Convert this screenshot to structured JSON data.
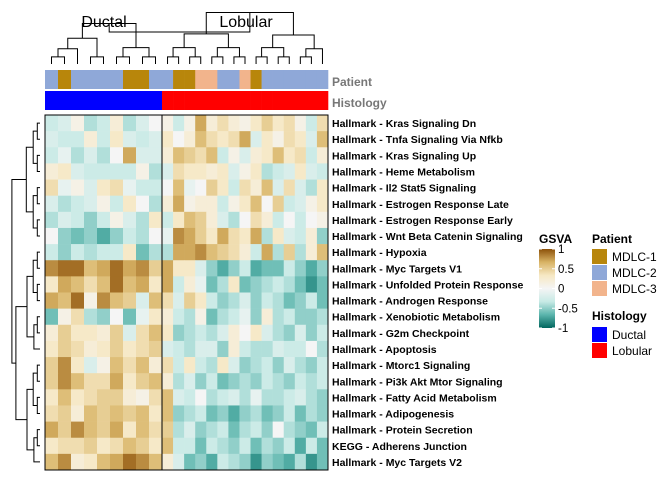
{
  "chart_data": {
    "type": "heatmap",
    "column_groups": [
      "Ductal",
      "Lobular"
    ],
    "annotation_labels": [
      "Patient",
      "Histology"
    ],
    "patient_colors": {
      "MDLC-1": "#B8860B",
      "MDLC-2": "#8FA8D8",
      "MDLC-3": "#F2B48C"
    },
    "histology_colors": {
      "Ductal": "#0000FF",
      "Lobular": "#FF0000"
    },
    "columns": [
      {
        "group": "Ductal",
        "patient": "MDLC-2"
      },
      {
        "group": "Ductal",
        "patient": "MDLC-1"
      },
      {
        "group": "Ductal",
        "patient": "MDLC-2"
      },
      {
        "group": "Ductal",
        "patient": "MDLC-2"
      },
      {
        "group": "Ductal",
        "patient": "MDLC-2"
      },
      {
        "group": "Ductal",
        "patient": "MDLC-2"
      },
      {
        "group": "Ductal",
        "patient": "MDLC-1"
      },
      {
        "group": "Ductal",
        "patient": "MDLC-1"
      },
      {
        "group": "Ductal",
        "patient": "MDLC-2"
      },
      {
        "group": "Lobular",
        "patient": "MDLC-2"
      },
      {
        "group": "Lobular",
        "patient": "MDLC-1"
      },
      {
        "group": "Lobular",
        "patient": "MDLC-1"
      },
      {
        "group": "Lobular",
        "patient": "MDLC-3"
      },
      {
        "group": "Lobular",
        "patient": "MDLC-3"
      },
      {
        "group": "Lobular",
        "patient": "MDLC-2"
      },
      {
        "group": "Lobular",
        "patient": "MDLC-2"
      },
      {
        "group": "Lobular",
        "patient": "MDLC-3"
      },
      {
        "group": "Lobular",
        "patient": "MDLC-1"
      },
      {
        "group": "Lobular",
        "patient": "MDLC-2"
      },
      {
        "group": "Lobular",
        "patient": "MDLC-2"
      },
      {
        "group": "Lobular",
        "patient": "MDLC-2"
      },
      {
        "group": "Lobular",
        "patient": "MDLC-2"
      },
      {
        "group": "Lobular",
        "patient": "MDLC-2"
      },
      {
        "group": "Lobular",
        "patient": "MDLC-2"
      }
    ],
    "rows": [
      "Hallmark - Kras Signaling Dn",
      "Hallmark - Tnfa Signaling Via Nfkb",
      "Hallmark - Kras Signaling Up",
      "Hallmark - Heme Metabolism",
      "Hallmark - Il2 Stat5 Signaling",
      "Hallmark - Estrogen Response Late",
      "Hallmark - Estrogen Response Early",
      "Hallmark - Wnt Beta Catenin Signaling",
      "Hallmark - Hypoxia",
      "Hallmark - Myc Targets V1",
      "Hallmark - Unfolded Protein Response",
      "Hallmark - Androgen Response",
      "Hallmark - Xenobiotic Metabolism",
      "Hallmark - G2m Checkpoint",
      "Hallmark - Apoptosis",
      "Hallmark - Mtorc1 Signaling",
      "Hallmark - Pi3k Akt Mtor Signaling",
      "Hallmark - Fatty Acid Metabolism",
      "Hallmark - Adipogenesis",
      "Hallmark - Protein Secretion",
      "KEGG - Adherens Junction",
      "Hallmark - Myc Targets V2"
    ],
    "values": [
      [
        -0.3,
        -0.2,
        0.1,
        -0.4,
        -0.3,
        0.2,
        -0.4,
        -0.2,
        0.0,
        0.1,
        -0.3,
        0.1,
        0.7,
        0.2,
        0.4,
        0.2,
        0.1,
        0.3,
        0.5,
        0.3,
        0.4,
        0.1,
        -0.3,
        0.4
      ],
      [
        -0.2,
        -0.3,
        -0.3,
        0.2,
        -0.3,
        0.3,
        -0.2,
        -0.3,
        -0.2,
        0.3,
        0.0,
        0.2,
        0.6,
        0.4,
        0.3,
        0.4,
        0.7,
        -0.2,
        0.3,
        0.1,
        0.4,
        0.3,
        -0.2,
        0.6
      ],
      [
        -0.3,
        -0.1,
        -0.4,
        -0.2,
        -0.4,
        0.0,
        0.7,
        -0.2,
        -0.2,
        0.2,
        0.6,
        0.5,
        0.4,
        0.6,
        -0.3,
        0.1,
        -0.2,
        0.2,
        0.3,
        0.6,
        0.3,
        0.4,
        -0.3,
        0.2
      ],
      [
        0.2,
        0.3,
        -0.2,
        -0.3,
        -0.3,
        -0.3,
        -0.3,
        0.1,
        -0.4,
        -0.2,
        0.4,
        0.3,
        0.3,
        0.2,
        0.3,
        -0.2,
        0.1,
        0.3,
        -0.4,
        -0.3,
        -0.2,
        0.3,
        -0.2,
        -0.3
      ],
      [
        0.4,
        -0.1,
        0.1,
        -0.2,
        0.3,
        0.4,
        -0.1,
        -0.3,
        -0.3,
        0.0,
        0.6,
        -0.1,
        0.0,
        0.5,
        0.3,
        -0.3,
        0.4,
        0.2,
        0.6,
        -0.2,
        0.4,
        -0.2,
        -0.4,
        0.3
      ],
      [
        -0.2,
        -0.4,
        -0.3,
        -0.2,
        0.1,
        -0.3,
        0.3,
        0.0,
        -0.4,
        0.2,
        0.7,
        0.1,
        0.2,
        0.2,
        -0.3,
        0.1,
        0.3,
        0.6,
        0.0,
        0.5,
        -0.3,
        -0.2,
        0.1,
        0.3
      ],
      [
        -0.4,
        -0.2,
        -0.3,
        -0.5,
        -0.3,
        0.1,
        -0.2,
        -0.4,
        0.3,
        -0.3,
        0.3,
        0.6,
        0.5,
        0.2,
        -0.2,
        -0.4,
        0.0,
        0.4,
        0.2,
        -0.3,
        0.0,
        -0.3,
        0.0,
        0.1
      ],
      [
        0.0,
        -0.5,
        -0.6,
        -0.5,
        -0.7,
        -0.5,
        -0.3,
        -0.4,
        0.0,
        -0.1,
        0.8,
        0.7,
        0.5,
        0.3,
        0.7,
        0.4,
        0.3,
        0.7,
        -0.4,
        0.3,
        -0.2,
        -0.3,
        0.2,
        -0.5
      ],
      [
        -0.3,
        -0.5,
        -0.3,
        -0.4,
        -0.3,
        -0.3,
        0.3,
        -0.6,
        -0.4,
        -0.4,
        0.7,
        0.7,
        0.8,
        0.6,
        0.5,
        0.4,
        0.2,
        -0.3,
        0.7,
        -0.4,
        0.5,
        -0.4,
        0.2,
        0.6
      ],
      [
        0.8,
        0.9,
        0.9,
        0.6,
        0.7,
        0.9,
        0.7,
        0.8,
        0.5,
        0.7,
        0.3,
        0.3,
        -0.2,
        -0.5,
        -0.7,
        -0.5,
        -0.3,
        -0.7,
        -0.6,
        -0.6,
        -0.3,
        -0.5,
        -0.7,
        -0.5
      ],
      [
        0.3,
        0.7,
        0.6,
        0.4,
        0.6,
        0.9,
        0.6,
        0.7,
        0.3,
        0.7,
        -0.3,
        0.2,
        -0.1,
        -0.6,
        -0.4,
        0.3,
        -0.6,
        -0.5,
        -0.4,
        -0.3,
        -0.4,
        -0.6,
        -0.8,
        -0.6
      ],
      [
        0.7,
        0.6,
        0.9,
        0.1,
        0.8,
        0.6,
        0.5,
        -0.2,
        0.6,
        0.4,
        -0.2,
        0.5,
        0.3,
        -0.3,
        -0.5,
        -0.4,
        -0.2,
        -0.5,
        -0.3,
        -0.4,
        -0.6,
        -0.5,
        -0.3,
        -0.6
      ],
      [
        -0.6,
        0.1,
        0.4,
        -0.4,
        -0.5,
        0.0,
        -0.6,
        -0.1,
        0.3,
        0.2,
        -0.3,
        -0.4,
        0.1,
        -0.6,
        -0.4,
        -0.3,
        -0.1,
        -0.5,
        0.2,
        -0.4,
        -0.3,
        -0.5,
        -0.5,
        -0.4
      ],
      [
        0.2,
        0.5,
        0.3,
        0.3,
        0.2,
        0.5,
        -0.2,
        0.4,
        0.6,
        0.3,
        -0.5,
        -0.4,
        -0.3,
        -0.4,
        -0.2,
        0.2,
        0.0,
        0.3,
        -0.2,
        -0.4,
        -0.5,
        -0.2,
        -0.5,
        -0.3
      ],
      [
        0.3,
        0.5,
        0.4,
        0.2,
        0.3,
        0.5,
        0.3,
        0.4,
        0.5,
        -0.2,
        -0.3,
        -0.4,
        -0.2,
        -0.2,
        -0.5,
        0.2,
        -0.3,
        -0.4,
        -0.4,
        -0.2,
        -0.3,
        -0.3,
        0.0,
        -0.4
      ],
      [
        0.5,
        0.8,
        0.3,
        -0.2,
        0.1,
        0.6,
        0.4,
        0.6,
        0.2,
        0.4,
        -0.3,
        0.3,
        -0.3,
        -0.4,
        0.3,
        -0.2,
        -0.5,
        -0.4,
        -0.3,
        -0.5,
        -0.2,
        -0.4,
        -0.5,
        -0.3
      ],
      [
        0.5,
        0.8,
        0.6,
        0.4,
        0.4,
        0.7,
        0.3,
        0.5,
        0.6,
        0.2,
        -0.4,
        -0.2,
        -0.5,
        -0.3,
        -0.6,
        -0.5,
        -0.4,
        -0.5,
        -0.3,
        -0.4,
        -0.5,
        -0.3,
        -0.4,
        -0.3
      ],
      [
        0.3,
        0.6,
        0.3,
        0.4,
        0.5,
        0.5,
        0.2,
        0.1,
        0.4,
        0.6,
        -0.2,
        -0.3,
        0.0,
        -0.4,
        -0.3,
        -0.2,
        -0.4,
        -0.1,
        -0.4,
        -0.4,
        -0.3,
        -0.2,
        -0.4,
        -0.5
      ],
      [
        0.4,
        0.5,
        0.2,
        0.6,
        0.5,
        0.6,
        0.5,
        0.6,
        0.3,
        0.6,
        -0.5,
        -0.4,
        -0.3,
        -0.6,
        -0.5,
        -0.7,
        -0.5,
        -0.4,
        -0.6,
        -0.5,
        -0.3,
        -0.6,
        -0.4,
        -0.5
      ],
      [
        0.7,
        0.5,
        0.8,
        0.6,
        0.5,
        0.7,
        0.3,
        0.6,
        0.4,
        0.5,
        -0.4,
        -0.2,
        -0.5,
        -0.4,
        -0.3,
        -0.6,
        -0.4,
        -0.3,
        -0.5,
        0.0,
        -0.4,
        -0.5,
        -0.6,
        -0.3
      ],
      [
        0.3,
        0.4,
        0.4,
        0.5,
        0.3,
        0.4,
        0.6,
        0.5,
        0.3,
        0.6,
        -0.3,
        -0.3,
        -0.6,
        -0.3,
        -0.4,
        -0.5,
        -0.3,
        -0.6,
        -0.4,
        -0.5,
        -0.3,
        -0.7,
        -0.3,
        -0.6
      ],
      [
        0.6,
        0.8,
        0.2,
        0.3,
        0.6,
        0.7,
        0.9,
        0.8,
        0.6,
        0.2,
        -0.2,
        -0.6,
        -0.5,
        -0.7,
        -0.3,
        -0.4,
        -0.5,
        -0.8,
        -0.5,
        -0.6,
        -0.7,
        -0.4,
        -0.8,
        -0.6
      ]
    ],
    "legend_gsva": {
      "title": "GSVA",
      "ticks": [
        1,
        0.5,
        0,
        -0.5,
        -1
      ],
      "tick_labels": [
        "1",
        "0.5",
        "0",
        "-0.5",
        "-1"
      ],
      "colors": [
        "#01665E",
        "#5AB4AC",
        "#C7EAE5",
        "#F5F5F5",
        "#F6E8C3",
        "#D8B365",
        "#8C510A"
      ]
    },
    "legend_patient": {
      "title": "Patient",
      "items": [
        "MDLC-1",
        "MDLC-2",
        "MDLC-3"
      ]
    },
    "legend_histology": {
      "title": "Histology",
      "items": [
        "Ductal",
        "Lobular"
      ]
    },
    "range": [
      -1,
      1
    ],
    "legend_placement": "right"
  }
}
